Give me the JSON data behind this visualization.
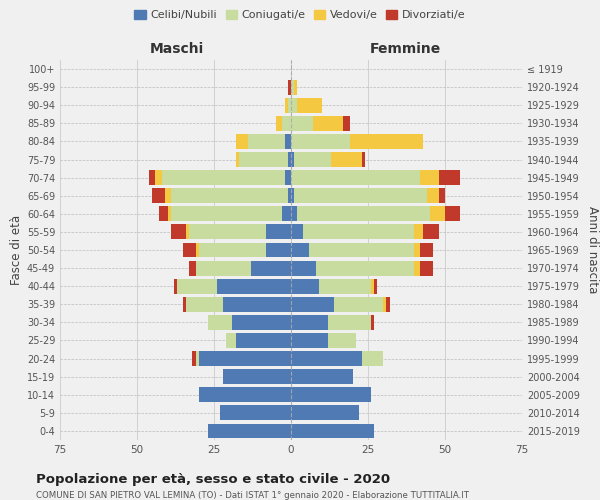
{
  "age_groups": [
    "0-4",
    "5-9",
    "10-14",
    "15-19",
    "20-24",
    "25-29",
    "30-34",
    "35-39",
    "40-44",
    "45-49",
    "50-54",
    "55-59",
    "60-64",
    "65-69",
    "70-74",
    "75-79",
    "80-84",
    "85-89",
    "90-94",
    "95-99",
    "100+"
  ],
  "birth_years": [
    "2015-2019",
    "2010-2014",
    "2005-2009",
    "2000-2004",
    "1995-1999",
    "1990-1994",
    "1985-1989",
    "1980-1984",
    "1975-1979",
    "1970-1974",
    "1965-1969",
    "1960-1964",
    "1955-1959",
    "1950-1954",
    "1945-1949",
    "1940-1944",
    "1935-1939",
    "1930-1934",
    "1925-1929",
    "1920-1924",
    "≤ 1919"
  ],
  "colors": {
    "celibe": "#4f7ab3",
    "coniugato": "#c8dca0",
    "vedovo": "#f5c842",
    "divorziato": "#c0392b"
  },
  "maschi": {
    "celibe": [
      27,
      23,
      30,
      22,
      30,
      18,
      19,
      22,
      24,
      13,
      8,
      8,
      3,
      1,
      2,
      1,
      2,
      0,
      0,
      0,
      0
    ],
    "coniugato": [
      0,
      0,
      0,
      0,
      1,
      3,
      8,
      12,
      13,
      18,
      22,
      25,
      36,
      38,
      40,
      16,
      12,
      3,
      1,
      0,
      0
    ],
    "vedovo": [
      0,
      0,
      0,
      0,
      0,
      0,
      0,
      0,
      0,
      0,
      1,
      1,
      1,
      2,
      2,
      1,
      4,
      2,
      1,
      0,
      0
    ],
    "divorziato": [
      0,
      0,
      0,
      0,
      1,
      0,
      0,
      1,
      1,
      2,
      4,
      5,
      3,
      4,
      2,
      0,
      0,
      0,
      0,
      1,
      0
    ]
  },
  "femmine": {
    "nubile": [
      27,
      22,
      26,
      20,
      23,
      12,
      12,
      14,
      9,
      8,
      6,
      4,
      2,
      1,
      0,
      1,
      0,
      0,
      0,
      0,
      0
    ],
    "coniugata": [
      0,
      0,
      0,
      0,
      7,
      9,
      14,
      16,
      17,
      32,
      34,
      36,
      43,
      43,
      42,
      12,
      19,
      7,
      2,
      1,
      0
    ],
    "vedova": [
      0,
      0,
      0,
      0,
      0,
      0,
      0,
      1,
      1,
      2,
      2,
      3,
      5,
      4,
      6,
      10,
      24,
      10,
      8,
      1,
      0
    ],
    "divorziata": [
      0,
      0,
      0,
      0,
      0,
      0,
      1,
      1,
      1,
      4,
      4,
      5,
      5,
      2,
      7,
      1,
      0,
      2,
      0,
      0,
      0
    ]
  },
  "title": "Popolazione per età, sesso e stato civile - 2020",
  "subtitle": "COMUNE DI SAN PIETRO VAL LEMINA (TO) - Dati ISTAT 1° gennaio 2020 - Elaborazione TUTTITALIA.IT",
  "xlabel_left": "Maschi",
  "xlabel_right": "Femmine",
  "ylabel_left": "Fasce di età",
  "ylabel_right": "Anni di nascita",
  "xlim": 75,
  "bg_color": "#f0f0f0",
  "legend_labels": [
    "Celibi/Nubili",
    "Coniugati/e",
    "Vedovi/e",
    "Divorziati/e"
  ]
}
